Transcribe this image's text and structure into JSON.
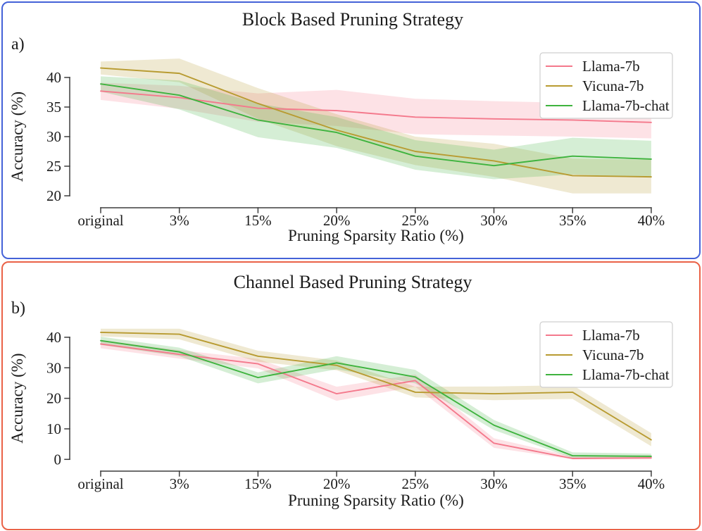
{
  "figure": {
    "background": "#ffffff",
    "text_color": "#1c1c1c",
    "axis_color": "#3d3d3d"
  },
  "chart_data": [
    {
      "id": "block-based",
      "panel_label": "a)",
      "type": "line",
      "title": "Block Based Pruning Strategy",
      "border_color": "#4462d8",
      "xlabel": "Pruning Sparsity Ratio (%)",
      "ylabel": "Accuracy (%)",
      "categories": [
        "original",
        "3%",
        "15%",
        "20%",
        "25%",
        "30%",
        "35%",
        "40%"
      ],
      "yticks": [
        20,
        25,
        30,
        35,
        40
      ],
      "ylim": [
        18,
        45
      ],
      "grid": false,
      "legend_position": "upper right",
      "band_style": "shaded confidence interval",
      "series": [
        {
          "name": "Llama-7b",
          "color": "#f4798c",
          "values": [
            37.7,
            36.6,
            34.8,
            34.4,
            33.3,
            33.0,
            32.8,
            32.4
          ],
          "band_lo": [
            36.2,
            34.7,
            32.5,
            31.8,
            30.4,
            30.2,
            30.0,
            29.7
          ],
          "band_hi": [
            39.1,
            38.6,
            37.3,
            37.9,
            36.4,
            36.0,
            35.7,
            35.2
          ]
        },
        {
          "name": "Vicuna-7b",
          "color": "#b89b31",
          "values": [
            41.6,
            40.7,
            35.6,
            31.1,
            27.5,
            25.9,
            23.4,
            23.2
          ],
          "band_lo": [
            40.5,
            39.2,
            33.0,
            28.4,
            25.2,
            23.2,
            20.4,
            20.4
          ],
          "band_hi": [
            42.7,
            43.2,
            38.2,
            33.8,
            30.0,
            28.8,
            26.3,
            26.1
          ]
        },
        {
          "name": "Llama-7b-chat",
          "color": "#3eb33e",
          "values": [
            38.9,
            37.0,
            32.8,
            30.7,
            26.7,
            25.1,
            26.7,
            26.2
          ],
          "band_lo": [
            37.6,
            34.6,
            29.9,
            28.1,
            24.4,
            22.8,
            23.6,
            23.1
          ],
          "band_hi": [
            40.2,
            39.5,
            35.6,
            33.3,
            29.4,
            27.8,
            29.8,
            29.3
          ]
        }
      ]
    },
    {
      "id": "channel-based",
      "panel_label": "b)",
      "type": "line",
      "title": "Channel Based Pruning Strategy",
      "border_color": "#ea6247",
      "xlabel": "Pruning Sparsity Ratio (%)",
      "ylabel": "Accuracy (%)",
      "categories": [
        "original",
        "3%",
        "15%",
        "20%",
        "25%",
        "30%",
        "35%",
        "40%"
      ],
      "yticks": [
        0,
        10,
        20,
        30,
        40
      ],
      "ylim": [
        -4,
        46
      ],
      "grid": false,
      "legend_position": "upper right",
      "band_style": "shaded confidence interval",
      "series": [
        {
          "name": "Llama-7b",
          "color": "#f4798c",
          "values": [
            37.8,
            34.4,
            31.3,
            21.5,
            25.8,
            5.3,
            0.3,
            0.5
          ],
          "band_lo": [
            36.4,
            33.0,
            29.8,
            19.2,
            23.8,
            3.8,
            0.0,
            0.0
          ],
          "band_hi": [
            39.1,
            35.8,
            32.9,
            23.8,
            27.8,
            6.9,
            1.0,
            1.3
          ]
        },
        {
          "name": "Vicuna-7b",
          "color": "#b89b31",
          "values": [
            41.6,
            41.0,
            33.8,
            30.8,
            22.0,
            21.5,
            22.0,
            6.4
          ],
          "band_lo": [
            40.3,
            39.3,
            32.0,
            29.2,
            20.3,
            19.4,
            19.8,
            4.3
          ],
          "band_hi": [
            42.8,
            42.8,
            35.6,
            32.4,
            23.8,
            23.9,
            24.3,
            8.6
          ]
        },
        {
          "name": "Llama-7b-chat",
          "color": "#3eb33e",
          "values": [
            38.9,
            35.2,
            26.8,
            31.6,
            27.0,
            11.2,
            1.2,
            1.0
          ],
          "band_lo": [
            37.5,
            33.8,
            24.9,
            29.5,
            24.9,
            9.6,
            0.4,
            0.3
          ],
          "band_hi": [
            40.2,
            36.6,
            28.5,
            33.8,
            29.3,
            12.9,
            2.3,
            1.9
          ]
        }
      ]
    }
  ]
}
